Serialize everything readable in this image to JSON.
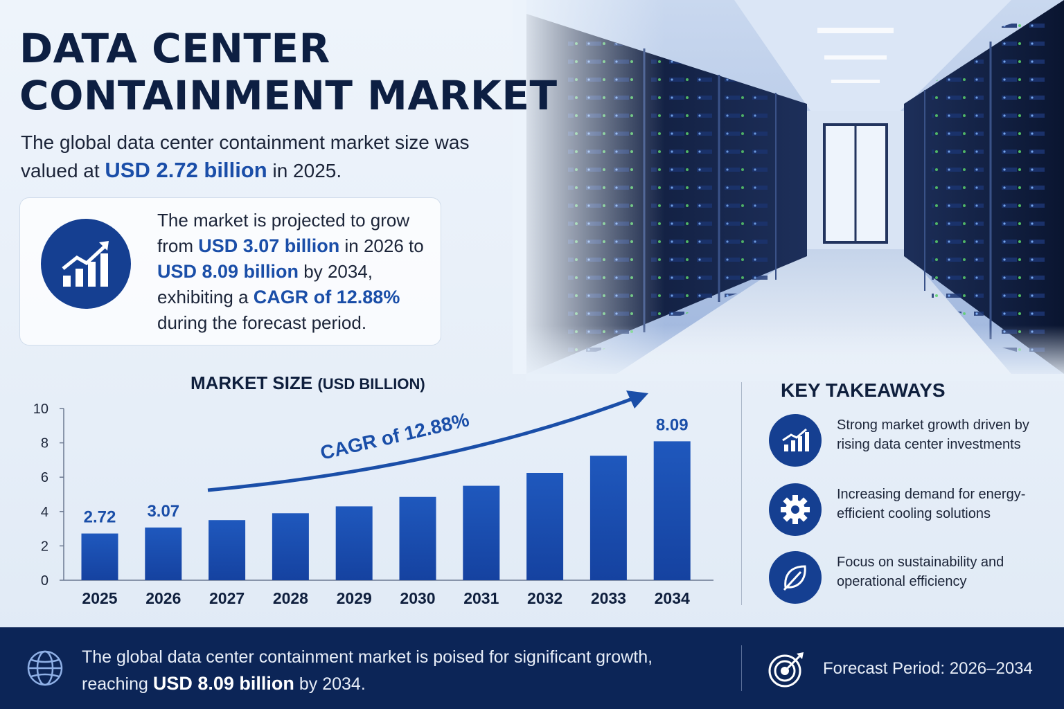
{
  "header": {
    "title_line1": "DATA CENTER",
    "title_line2": "CONTAINMENT MARKET"
  },
  "intro": {
    "text_before": "The global data center containment market size was valued at ",
    "highlight": "USD 2.72 billion",
    "text_after": " in 2025."
  },
  "projection": {
    "icon": "growth-chart-icon",
    "t1": "The market is projected to grow from ",
    "h1": "USD 3.07 billion",
    "t2": " in 2026 to ",
    "h2": "USD 8.09 billion",
    "t3": " by 2034, exhibiting a ",
    "h3": "CAGR of 12.88%",
    "t4": " during the forecast period."
  },
  "chart_data": {
    "type": "bar",
    "title": "MARKET SIZE",
    "title_unit": "(USD BILLION)",
    "categories": [
      "2025",
      "2026",
      "2027",
      "2028",
      "2029",
      "2030",
      "2031",
      "2032",
      "2033",
      "2034"
    ],
    "values": [
      2.72,
      3.07,
      3.5,
      3.9,
      4.3,
      4.85,
      5.5,
      6.25,
      7.25,
      8.09
    ],
    "data_labels": {
      "0": "2.72",
      "1": "3.07",
      "9": "8.09"
    },
    "yticks": [
      "0",
      "2",
      "4",
      "6",
      "8",
      "10"
    ],
    "ylim": [
      0,
      10
    ],
    "annotation": "CAGR of 12.88%",
    "grid": false,
    "bar_color": "#1a4ea8"
  },
  "takeaways": {
    "title": "KEY TAKEAWAYS",
    "items": [
      {
        "icon": "bar-chart-icon",
        "text": "Strong market growth driven by rising data center investments"
      },
      {
        "icon": "gear-icon",
        "text": "Increasing demand for energy-efficient cooling solutions"
      },
      {
        "icon": "leaf-icon",
        "text": "Focus on sustainability and operational efficiency"
      }
    ]
  },
  "footer": {
    "icon": "globe-icon",
    "text_before": "The global data center containment market is poised for significant growth, reaching ",
    "highlight": "USD 8.09 billion",
    "text_after": " by 2034.",
    "target_icon": "target-icon",
    "forecast": "Forecast Period: 2026–2034"
  },
  "colors": {
    "navy": "#0c2557",
    "accent": "#1a4ea8",
    "icon_bg": "#153f91"
  }
}
